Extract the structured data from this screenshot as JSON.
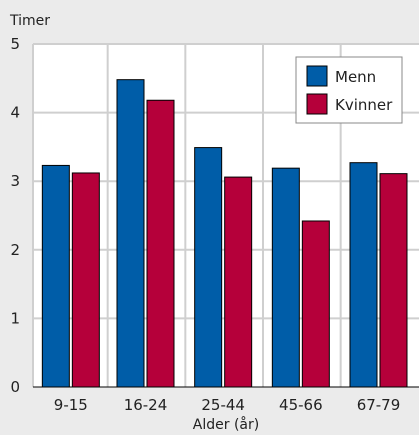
{
  "chart_data": {
    "type": "bar",
    "title": "",
    "ylabel": "Timer",
    "xlabel": "Alder (år)",
    "categories": [
      "9-15",
      "16-24",
      "25-44",
      "45-66",
      "67-79"
    ],
    "series": [
      {
        "name": "Menn",
        "color": "#005da8",
        "values": [
          3.23,
          4.48,
          3.49,
          3.19,
          3.27
        ]
      },
      {
        "name": "Kvinner",
        "color": "#b5003a",
        "values": [
          3.12,
          4.18,
          3.06,
          2.42,
          3.11
        ]
      }
    ],
    "ylim": [
      0,
      5
    ],
    "yticks": [
      0,
      1,
      2,
      3,
      4,
      5
    ],
    "grid": true,
    "legend_position": "top-right"
  }
}
